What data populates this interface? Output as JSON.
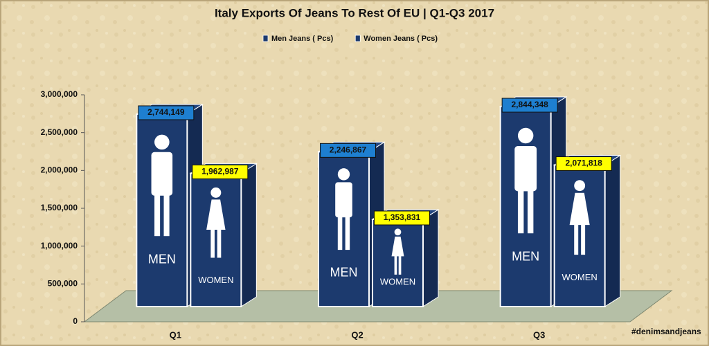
{
  "chart_data": {
    "type": "bar3d",
    "title": "Italy Exports Of Jeans To Rest Of EU | Q1-Q3 2017",
    "categories": [
      "Q1",
      "Q2",
      "Q3"
    ],
    "series": [
      {
        "name": "Men Jeans ( Pcs)",
        "color": "#1c3a6e",
        "label_color": "#1e7fd0",
        "icon": "men",
        "values": [
          2744149,
          2246867,
          2844348
        ],
        "value_labels": [
          "2,744,149",
          "2,246,867",
          "2,844,348"
        ]
      },
      {
        "name": "Women Jeans ( Pcs)",
        "color": "#1c3a6e",
        "label_color": "#ffff00",
        "icon": "women",
        "values": [
          1962987,
          1353831,
          2071818
        ],
        "value_labels": [
          "1,962,987",
          "1,353,831",
          "2,071,818"
        ]
      }
    ],
    "icon_labels": {
      "men": "MEN",
      "women": "WOMEN"
    },
    "ylim": [
      0,
      3000000
    ],
    "yticks": [
      0,
      {
        "value": 500000,
        "label": "500,000"
      },
      {
        "value": 1000000,
        "label": "1,000,000"
      },
      {
        "value": 1500000,
        "label": "1,500,000"
      },
      {
        "value": 2000000,
        "label": "2,000,000"
      },
      {
        "value": 2500000,
        "label": "2,500,000"
      },
      {
        "value": 3000000,
        "label": "3,000,000"
      }
    ],
    "annotation": "#denimsandjeans",
    "legend": "top"
  }
}
